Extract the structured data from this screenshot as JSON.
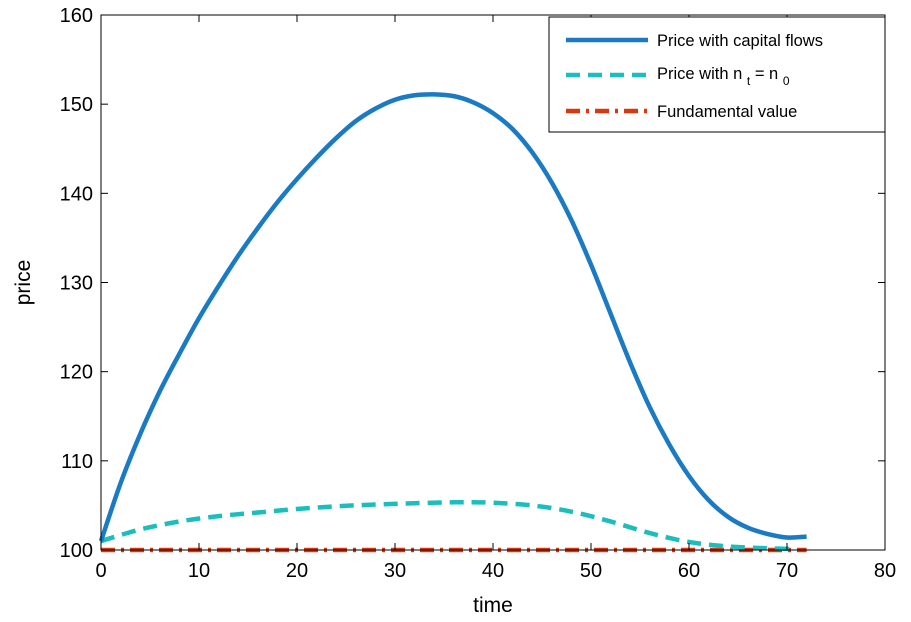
{
  "chart_data": {
    "type": "line",
    "xlabel": "time",
    "ylabel": "price",
    "xlim": [
      0,
      80
    ],
    "ylim": [
      100,
      160
    ],
    "xticks": [
      0,
      10,
      20,
      30,
      40,
      50,
      60,
      70,
      80
    ],
    "yticks": [
      100,
      110,
      120,
      130,
      140,
      150,
      160
    ],
    "grid": false,
    "legend_position": "top-right",
    "series": [
      {
        "name": "Price with capital flows",
        "color": "#1a7ac4",
        "style": "solid",
        "x": [
          0,
          2,
          4,
          6,
          8,
          10,
          12,
          14,
          16,
          18,
          20,
          22,
          24,
          26,
          28,
          30,
          32,
          34,
          36,
          38,
          40,
          42,
          44,
          46,
          48,
          50,
          52,
          54,
          56,
          58,
          60,
          62,
          64,
          66,
          68,
          70,
          72
        ],
        "y": [
          101,
          107.5,
          113,
          117.8,
          122,
          126,
          129.6,
          133,
          136.1,
          139,
          141.6,
          144,
          146.2,
          148.1,
          149.5,
          150.5,
          151,
          151.1,
          150.9,
          150.2,
          149,
          147.2,
          144.6,
          141.2,
          137,
          132,
          126.5,
          121,
          116,
          111.8,
          108.3,
          105.6,
          103.7,
          102.5,
          101.8,
          101.4,
          101.5
        ]
      },
      {
        "name": "Price with n_t = n_0",
        "color": "#1bbdbd",
        "style": "dashed",
        "x": [
          0,
          4,
          8,
          12,
          16,
          20,
          24,
          28,
          32,
          36,
          38,
          40,
          44,
          48,
          52,
          56,
          60,
          64,
          68,
          71
        ],
        "y": [
          101,
          102.3,
          103.2,
          103.8,
          104.2,
          104.6,
          104.9,
          105.1,
          105.25,
          105.35,
          105.35,
          105.3,
          105,
          104.3,
          103.2,
          101.9,
          100.9,
          100.4,
          100.2,
          100.1
        ]
      },
      {
        "name": "Fundamental value",
        "color": "#d7380f",
        "style": "dash-dot",
        "x": [
          0,
          72
        ],
        "y": [
          100,
          100
        ]
      }
    ],
    "legend": [
      {
        "label": "Price with capital flows"
      },
      {
        "label": "Price with n",
        "sub1": "t",
        "mid": " = n",
        "sub2": "0"
      },
      {
        "label": "Fundamental value"
      }
    ]
  }
}
